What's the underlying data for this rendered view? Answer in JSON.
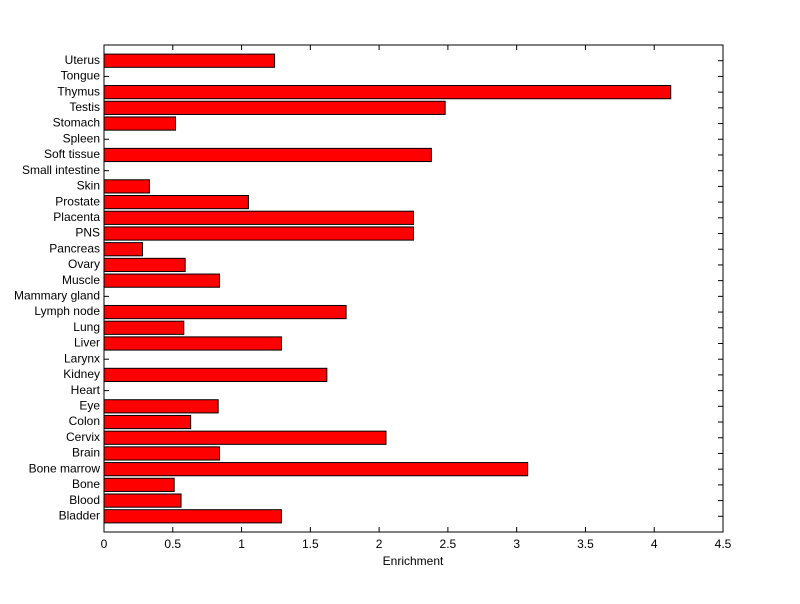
{
  "chart_data": {
    "type": "barh",
    "xlabel": "Enrichment",
    "categories": [
      "Uterus",
      "Tongue",
      "Thymus",
      "Testis",
      "Stomach",
      "Spleen",
      "Soft tissue",
      "Small intestine",
      "Skin",
      "Prostate",
      "Placenta",
      "PNS",
      "Pancreas",
      "Ovary",
      "Muscle",
      "Mammary gland",
      "Lymph node",
      "Lung",
      "Liver",
      "Larynx",
      "Kidney",
      "Heart",
      "Eye",
      "Colon",
      "Cervix",
      "Brain",
      "Bone marrow",
      "Bone",
      "Blood",
      "Bladder"
    ],
    "values": [
      1.24,
      0,
      4.12,
      2.48,
      0.52,
      0,
      2.38,
      0,
      0.33,
      1.05,
      2.25,
      2.25,
      0.28,
      0.59,
      0.84,
      0,
      1.76,
      0.58,
      1.29,
      0,
      1.62,
      0,
      0.83,
      0.63,
      2.05,
      0.84,
      3.08,
      0.51,
      0.56,
      1.29
    ],
    "color": "#ff0000",
    "xlim": [
      0,
      4.5
    ],
    "xticks": [
      0,
      0.5,
      1,
      1.5,
      2,
      2.5,
      3,
      3.5,
      4,
      4.5
    ]
  }
}
